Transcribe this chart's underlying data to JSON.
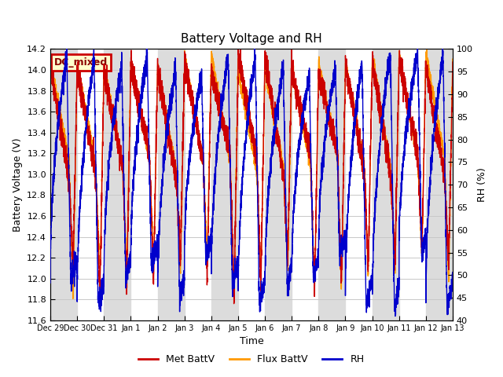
{
  "title": "Battery Voltage and RH",
  "xlabel": "Time",
  "ylabel_left": "Battery Voltage (V)",
  "ylabel_right": "RH (%)",
  "annotation": "DC_mixed",
  "ylim_left": [
    11.6,
    14.2
  ],
  "ylim_right": [
    40,
    100
  ],
  "yticks_left": [
    11.6,
    11.8,
    12.0,
    12.2,
    12.4,
    12.6,
    12.8,
    13.0,
    13.2,
    13.4,
    13.6,
    13.8,
    14.0,
    14.2
  ],
  "yticks_right": [
    40,
    45,
    50,
    55,
    60,
    65,
    70,
    75,
    80,
    85,
    90,
    95,
    100
  ],
  "xtick_labels": [
    "Dec 29",
    "Dec 30",
    "Dec 31",
    "Jan 1",
    "Jan 2",
    "Jan 3",
    "Jan 4",
    "Jan 5",
    "Jan 6",
    "Jan 7",
    "Jan 8",
    "Jan 9",
    "Jan 10",
    "Jan 11",
    "Jan 12",
    "Jan 13"
  ],
  "color_met": "#cc0000",
  "color_flux": "#ff9900",
  "color_rh": "#0000cc",
  "legend_labels": [
    "Met BattV",
    "Flux BattV",
    "RH"
  ],
  "background_color": "#ffffff",
  "grid_color": "#c8c8c8",
  "band_color": "#dcdcdc",
  "annotation_bg": "#ffffcc",
  "annotation_border": "#cc0000",
  "annotation_text_color": "#8b0000",
  "figsize": [
    6.4,
    4.8
  ],
  "dpi": 100
}
